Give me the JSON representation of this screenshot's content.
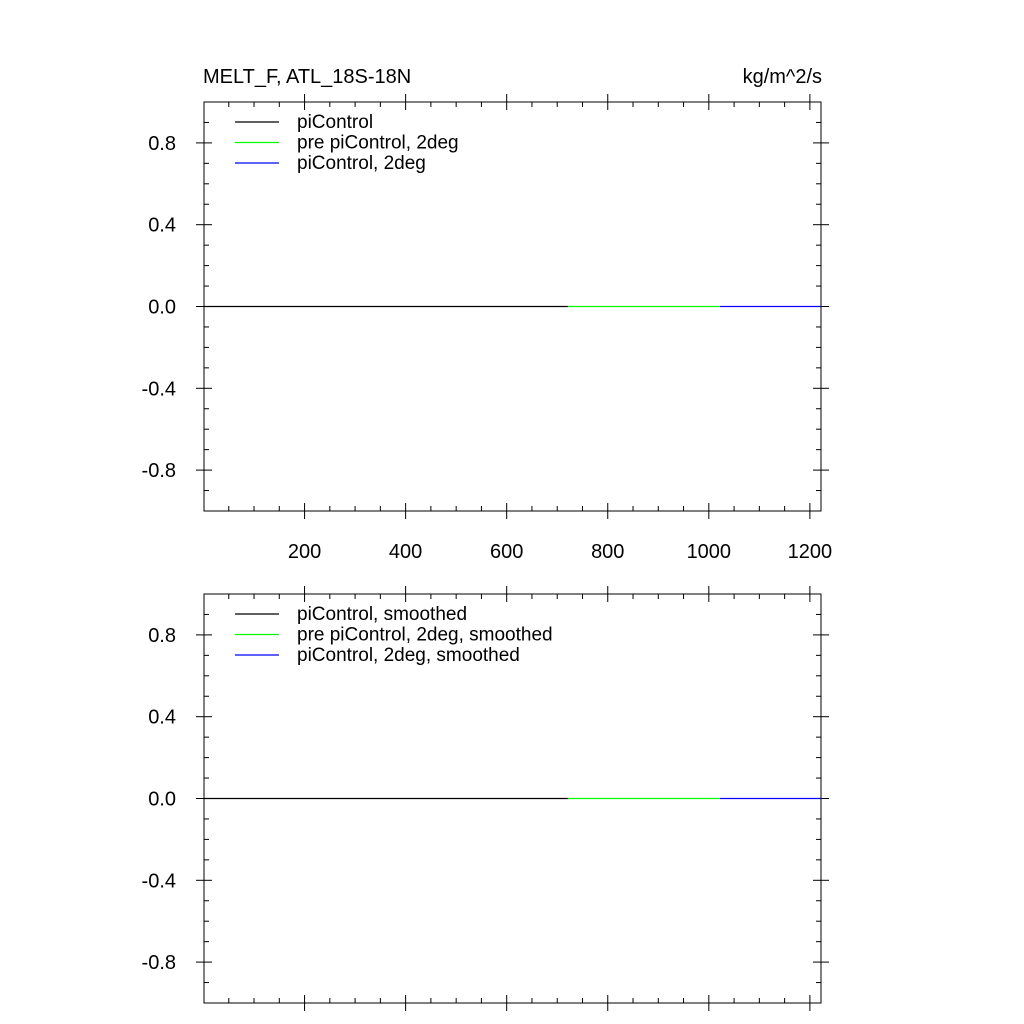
{
  "header": {
    "title": "MELT_F, ATL_18S-18N",
    "units": "kg/m^2/s"
  },
  "chart_data": [
    {
      "type": "line",
      "title": "MELT_F, ATL_18S-18N",
      "ylabel_right": "kg/m^2/s",
      "xlim": [
        1,
        1222
      ],
      "ylim": [
        -1,
        1
      ],
      "xticks": [
        200,
        400,
        600,
        800,
        1000,
        1200
      ],
      "xtick_labels": [
        "200",
        "400",
        "600",
        "800",
        "1000",
        "1200"
      ],
      "yticks": [
        0.8,
        0.4,
        0.0,
        -0.4,
        -0.8
      ],
      "ytick_labels": [
        "0.8",
        "0.4",
        "0.0",
        "-0.4",
        "-0.8"
      ],
      "grid": false,
      "legend_position": "top-left",
      "series": [
        {
          "name": "piControl",
          "color": "#000000",
          "x": [
            1,
            722
          ],
          "values": [
            0,
            0
          ]
        },
        {
          "name": "pre piControl, 2deg",
          "color": "#00ff00",
          "x": [
            722,
            1022
          ],
          "values": [
            0,
            0
          ]
        },
        {
          "name": "piControl, 2deg",
          "color": "#0000ff",
          "x": [
            1022,
            1222
          ],
          "values": [
            0,
            0
          ]
        }
      ]
    },
    {
      "type": "line",
      "title": "",
      "xlim": [
        1,
        1222
      ],
      "ylim": [
        -1,
        1
      ],
      "xticks": [
        200,
        400,
        600,
        800,
        1000,
        1200
      ],
      "xtick_labels": [],
      "yticks": [
        0.8,
        0.4,
        0.0,
        -0.4,
        -0.8
      ],
      "ytick_labels": [
        "0.8",
        "0.4",
        "0.0",
        "-0.4",
        "-0.8"
      ],
      "grid": false,
      "legend_position": "top-left",
      "series": [
        {
          "name": "piControl, smoothed",
          "color": "#000000",
          "x": [
            1,
            722
          ],
          "values": [
            0,
            0
          ]
        },
        {
          "name": "pre piControl, 2deg, smoothed",
          "color": "#00ff00",
          "x": [
            722,
            1022
          ],
          "values": [
            0,
            0
          ]
        },
        {
          "name": "piControl, 2deg, smoothed",
          "color": "#0000ff",
          "x": [
            1022,
            1222
          ],
          "values": [
            0,
            0
          ]
        }
      ]
    }
  ]
}
